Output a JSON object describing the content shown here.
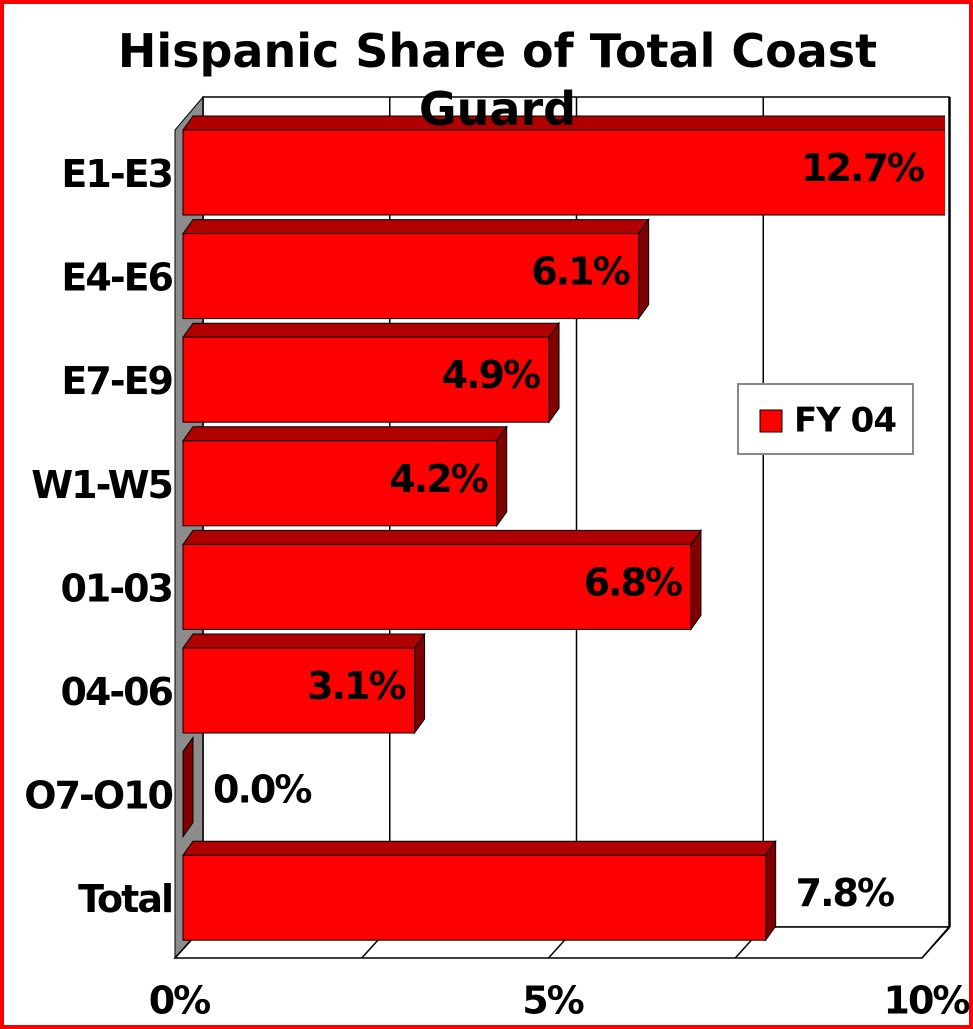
{
  "chart_data": {
    "type": "bar3d_horizontal",
    "title": "Hispanic Share of Total Coast Guard",
    "categories": [
      "E1-E3",
      "E4-E6",
      "E7-E9",
      "W1-W5",
      "01-03",
      "04-06",
      "O7-O10",
      "Total"
    ],
    "series": [
      {
        "name": "FY 04",
        "color": "#ff0000",
        "values": [
          12.7,
          6.1,
          4.9,
          4.2,
          6.8,
          3.1,
          0.0,
          7.8
        ],
        "value_labels": [
          "12.7%",
          "6.1%",
          "4.9%",
          "4.2%",
          "6.8%",
          "3.1%",
          "0.0%",
          "7.8%"
        ]
      }
    ],
    "xlim": [
      0,
      10
    ],
    "xticks": [
      {
        "value": 0,
        "label": "0%"
      },
      {
        "value": 5,
        "label": "5%"
      },
      {
        "value": 10,
        "label": "10%"
      }
    ],
    "minor_xticks": [
      2.5,
      7.5
    ],
    "grid": true,
    "legend": "right"
  }
}
